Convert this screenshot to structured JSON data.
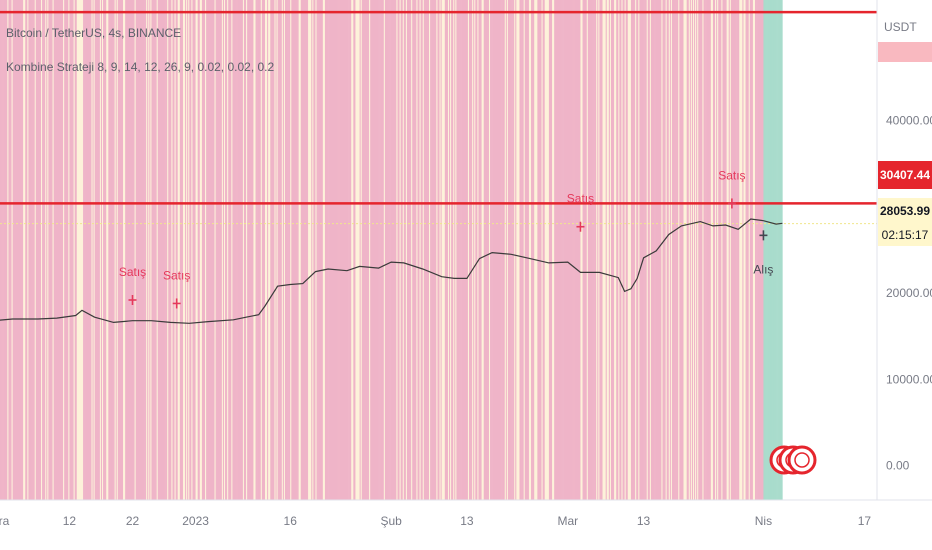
{
  "chart_data": {
    "type": "line",
    "title": "Bitcoin / TetherUS, 4s, BINANCE",
    "indicator": "Kombine Strateji 8, 9, 14, 12, 26, 9, 0.02, 0.02, 0.2",
    "unit": "USDT",
    "ylim": [
      -4000,
      54000
    ],
    "yticks": [
      {
        "value": 40000,
        "label": "40000.00"
      },
      {
        "value": 30000,
        "label": "30000.00"
      },
      {
        "value": 20000,
        "label": "20000.00"
      },
      {
        "value": 10000,
        "label": "10000.00"
      },
      {
        "value": 0,
        "label": "0.00"
      }
    ],
    "x_start": "2022-12-01",
    "x_end": "2023-04-19",
    "xticks": [
      {
        "date": "2022-12-01",
        "label": "Ara"
      },
      {
        "date": "2022-12-12",
        "label": "12"
      },
      {
        "date": "2022-12-22",
        "label": "22"
      },
      {
        "date": "2023-01-01",
        "label": "2023"
      },
      {
        "date": "2023-01-16",
        "label": "16"
      },
      {
        "date": "2023-02-01",
        "label": "Şub"
      },
      {
        "date": "2023-02-13",
        "label": "13"
      },
      {
        "date": "2023-03-01",
        "label": "Mar"
      },
      {
        "date": "2023-03-13",
        "label": "13"
      },
      {
        "date": "2023-04-01",
        "label": "Nis"
      },
      {
        "date": "2023-04-17",
        "label": "17"
      }
    ],
    "series": [
      {
        "color": "#3b3b3b",
        "points": [
          [
            "2022-11-30",
            16800
          ],
          [
            "2022-12-03",
            17000
          ],
          [
            "2022-12-07",
            17000
          ],
          [
            "2022-12-10",
            17100
          ],
          [
            "2022-12-13",
            17400
          ],
          [
            "2022-12-14",
            18000
          ],
          [
            "2022-12-16",
            17200
          ],
          [
            "2022-12-19",
            16600
          ],
          [
            "2022-12-22",
            16800
          ],
          [
            "2022-12-25",
            16800
          ],
          [
            "2022-12-28",
            16600
          ],
          [
            "2022-12-31",
            16500
          ],
          [
            "2023-01-03",
            16700
          ],
          [
            "2023-01-07",
            16900
          ],
          [
            "2023-01-09",
            17200
          ],
          [
            "2023-01-11",
            17500
          ],
          [
            "2023-01-12",
            18500
          ],
          [
            "2023-01-14",
            20800
          ],
          [
            "2023-01-16",
            21000
          ],
          [
            "2023-01-18",
            21100
          ],
          [
            "2023-01-20",
            22500
          ],
          [
            "2023-01-22",
            22800
          ],
          [
            "2023-01-25",
            22600
          ],
          [
            "2023-01-27",
            23100
          ],
          [
            "2023-01-30",
            22900
          ],
          [
            "2023-02-01",
            23600
          ],
          [
            "2023-02-03",
            23500
          ],
          [
            "2023-02-06",
            22800
          ],
          [
            "2023-02-09",
            21900
          ],
          [
            "2023-02-11",
            21700
          ],
          [
            "2023-02-13",
            21700
          ],
          [
            "2023-02-15",
            24000
          ],
          [
            "2023-02-17",
            24700
          ],
          [
            "2023-02-20",
            24500
          ],
          [
            "2023-02-23",
            24000
          ],
          [
            "2023-02-26",
            23500
          ],
          [
            "2023-03-01",
            23600
          ],
          [
            "2023-03-03",
            22400
          ],
          [
            "2023-03-06",
            22400
          ],
          [
            "2023-03-09",
            21800
          ],
          [
            "2023-03-10",
            20200
          ],
          [
            "2023-03-11",
            20500
          ],
          [
            "2023-03-12",
            21700
          ],
          [
            "2023-03-13",
            24100
          ],
          [
            "2023-03-15",
            24900
          ],
          [
            "2023-03-17",
            26800
          ],
          [
            "2023-03-19",
            27800
          ],
          [
            "2023-03-22",
            28300
          ],
          [
            "2023-03-24",
            27800
          ],
          [
            "2023-03-26",
            27900
          ],
          [
            "2023-03-28",
            27400
          ],
          [
            "2023-03-30",
            28600
          ],
          [
            "2023-04-01",
            28400
          ],
          [
            "2023-04-03",
            28000
          ],
          [
            "2023-04-04",
            28100
          ]
        ]
      }
    ],
    "hlines": [
      {
        "value": 52600,
        "color": "#e5252d"
      },
      {
        "value": 30407.44,
        "color": "#e5252d",
        "label": "30407.44"
      }
    ],
    "last_price": {
      "value": 28053.99,
      "label": "28053.99",
      "timer": "02:15:17"
    },
    "signals": [
      {
        "date": "2022-12-22",
        "value": 19200,
        "label": "Satış",
        "type": "sell",
        "label_pos": "above",
        "color": "#e5395b"
      },
      {
        "date": "2022-12-29",
        "value": 18800,
        "label": "Satış",
        "type": "sell",
        "label_pos": "above",
        "color": "#e5395b"
      },
      {
        "date": "2023-03-03",
        "value": 27700,
        "label": "Satış",
        "type": "sell",
        "label_pos": "above",
        "color": "#e5395b"
      },
      {
        "date": "2023-03-27",
        "value": 30400,
        "label": "Satış",
        "type": "sell",
        "label_pos": "above",
        "color": "#e5395b"
      },
      {
        "date": "2023-04-01",
        "value": 26700,
        "label": "Alış",
        "type": "buy",
        "label_pos": "below",
        "color": "#434651"
      }
    ],
    "background": {
      "end_date": "2023-04-04",
      "colors": {
        "sell": "#efb4c8",
        "buy": "#a9dccc",
        "neutral": "#fdf2da"
      },
      "buy_zone_start": "2023-04-01"
    }
  }
}
